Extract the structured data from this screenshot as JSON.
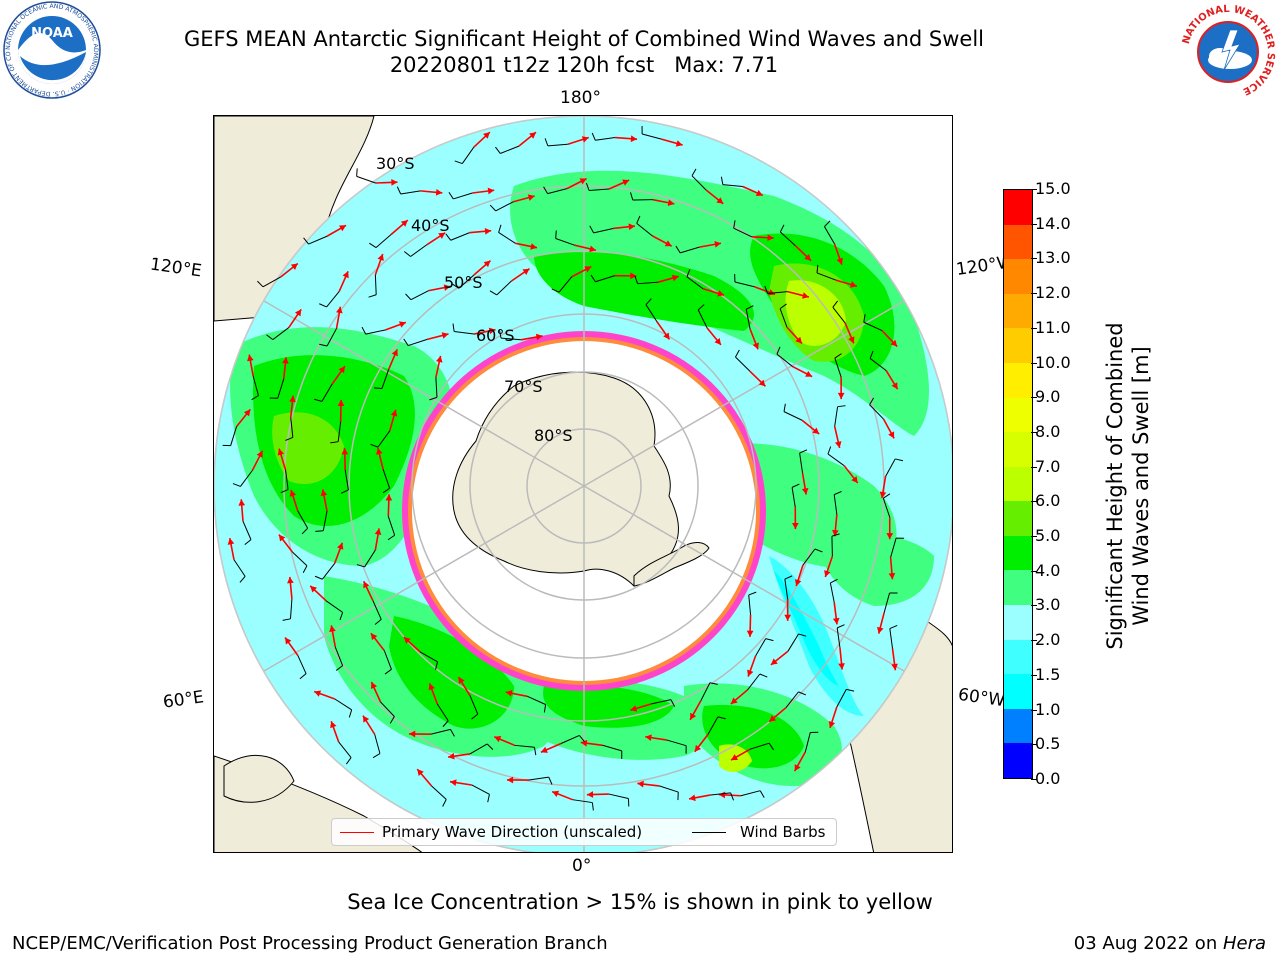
{
  "title": {
    "line1": "GEFS MEAN Antarctic Significant Height of Combined Wind Waves and Swell",
    "line2": "20220801 t12z 120h fcst   Max: 7.71"
  },
  "logos": {
    "noaa_text": "NOAA",
    "noaa_ring": "NATIONAL OCEANIC AND ATMOSPHERIC ADMINISTRATION · U.S. DEPARTMENT OF COMMERCE",
    "nws_ring": "NATIONAL WEATHER SERVICE"
  },
  "map": {
    "projection": "south-polar-stereographic",
    "lon_labels": {
      "top": "180°",
      "bottom": "0°",
      "upper_left": "120°E",
      "upper_right": "120°W",
      "lower_left": "60°E",
      "lower_right": "60°W"
    },
    "lat_labels": [
      "30°S",
      "40°S",
      "50°S",
      "60°S",
      "70°S",
      "80°S"
    ],
    "colors": {
      "land": "#efecd9",
      "sea_ice": "#ff44cc",
      "ice_edge": "#ffaa00",
      "grid": "#bbbbbb"
    }
  },
  "colorbar": {
    "label_line1": "Significant Height of Combined",
    "label_line2": "Wind Waves and Swell [m]",
    "ticks": [
      "0.0",
      "0.5",
      "1.0",
      "1.5",
      "2.0",
      "3.0",
      "4.0",
      "5.0",
      "6.0",
      "7.0",
      "8.0",
      "9.0",
      "10.0",
      "11.0",
      "12.0",
      "13.0",
      "14.0",
      "15.0"
    ],
    "colors": [
      "#0000ff",
      "#0080ff",
      "#00ffff",
      "#40ffff",
      "#9bffff",
      "#40ff80",
      "#00ee00",
      "#66ee00",
      "#bbff00",
      "#d8ff00",
      "#eeff00",
      "#ffee00",
      "#ffcc00",
      "#ffaa00",
      "#ff8800",
      "#ff5500",
      "#ff0000"
    ]
  },
  "legend": {
    "wave_direction": "Primary Wave Direction (unscaled)",
    "wind_barbs": "Wind Barbs"
  },
  "notes": {
    "ice": "Sea Ice Concentration > 15% is shown in pink to yellow",
    "footer_left": "NCEP/EMC/Verification Post Processing Product Generation Branch",
    "footer_right_prefix": "03 Aug 2022 on ",
    "footer_right_host": "Hera"
  }
}
